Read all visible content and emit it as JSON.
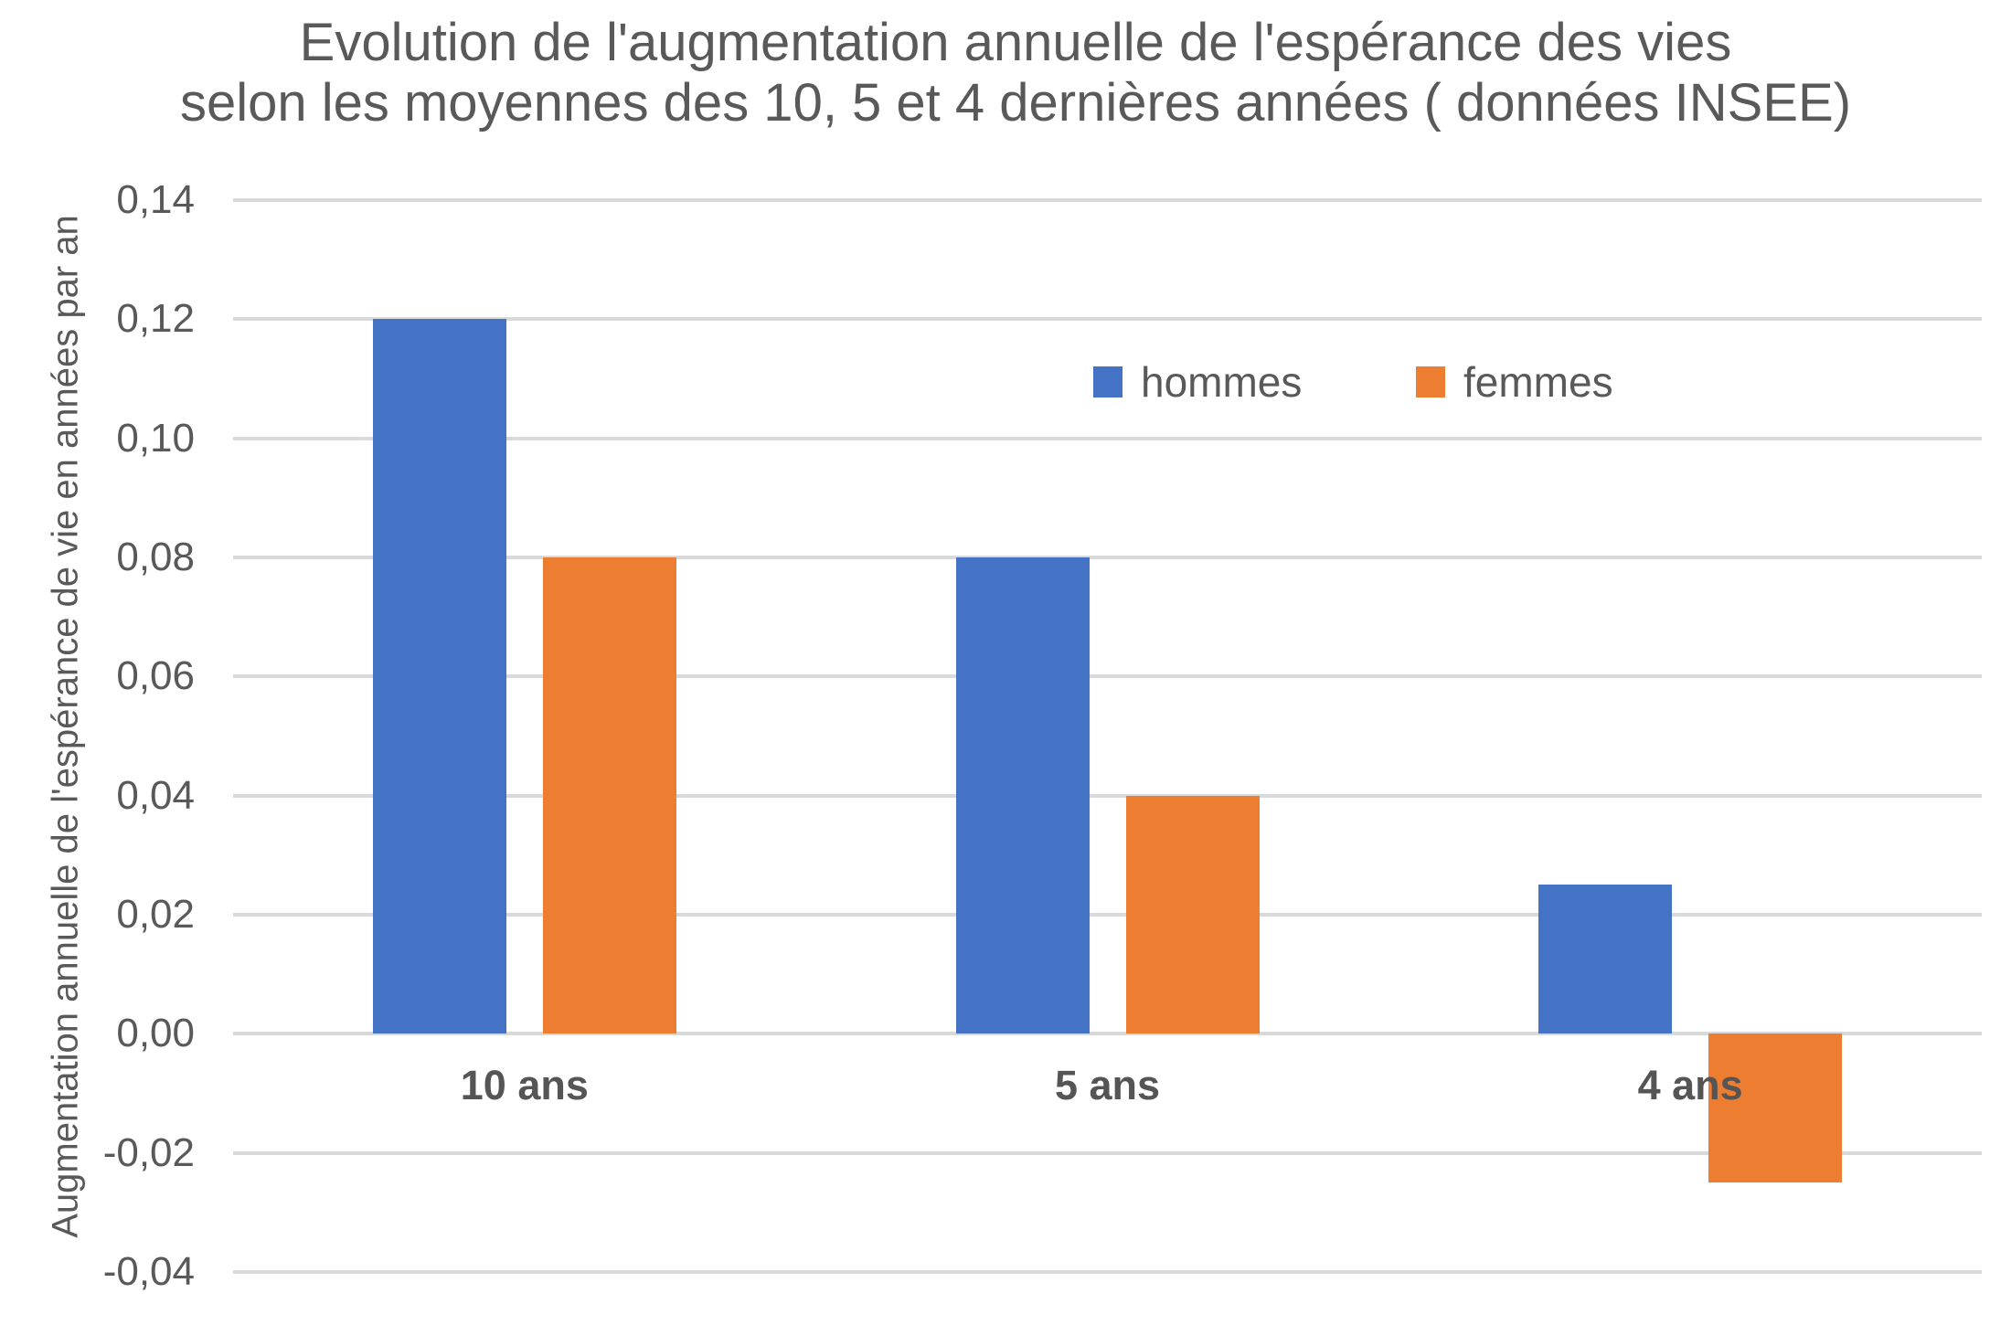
{
  "title": {
    "line1": "Evolution de l'augmentation annuelle de l'espérance des vies",
    "line2": "selon les moyennes des 10, 5 et 4 dernières années ( données INSEE)"
  },
  "y_axis": {
    "title": "Augmentation annuelle de l'espérance de vie en années par an",
    "tick_labels": [
      "0,14",
      "0,12",
      "0,10",
      "0,08",
      "0,06",
      "0,04",
      "0,02",
      "0,00",
      "-0,02",
      "-0,04"
    ]
  },
  "legend": {
    "items": [
      {
        "label": "hommes",
        "color": "#4472C4"
      },
      {
        "label": "femmes",
        "color": "#ED7D31"
      }
    ]
  },
  "chart_data": {
    "type": "bar",
    "title": "Evolution de l'augmentation annuelle de l'espérance des vies selon les moyennes des 10, 5 et 4 dernières années ( données INSEE)",
    "categories": [
      "10 ans",
      "5 ans",
      "4 ans"
    ],
    "series": [
      {
        "name": "hommes",
        "color": "#4472C4",
        "values": [
          0.12,
          0.08,
          0.025
        ]
      },
      {
        "name": "femmes",
        "color": "#ED7D31",
        "values": [
          0.08,
          0.04,
          -0.025
        ]
      }
    ],
    "xlabel": "",
    "ylabel": "Augmentation annuelle de l'espérance de vie en années par an",
    "ylim": [
      -0.04,
      0.14
    ],
    "ytick_step": 0.02,
    "grid": true,
    "gridline_color": "#D9D9D9",
    "legend_position": "top-right-inside",
    "decimal_separator": ",",
    "text_color": "#595959"
  }
}
